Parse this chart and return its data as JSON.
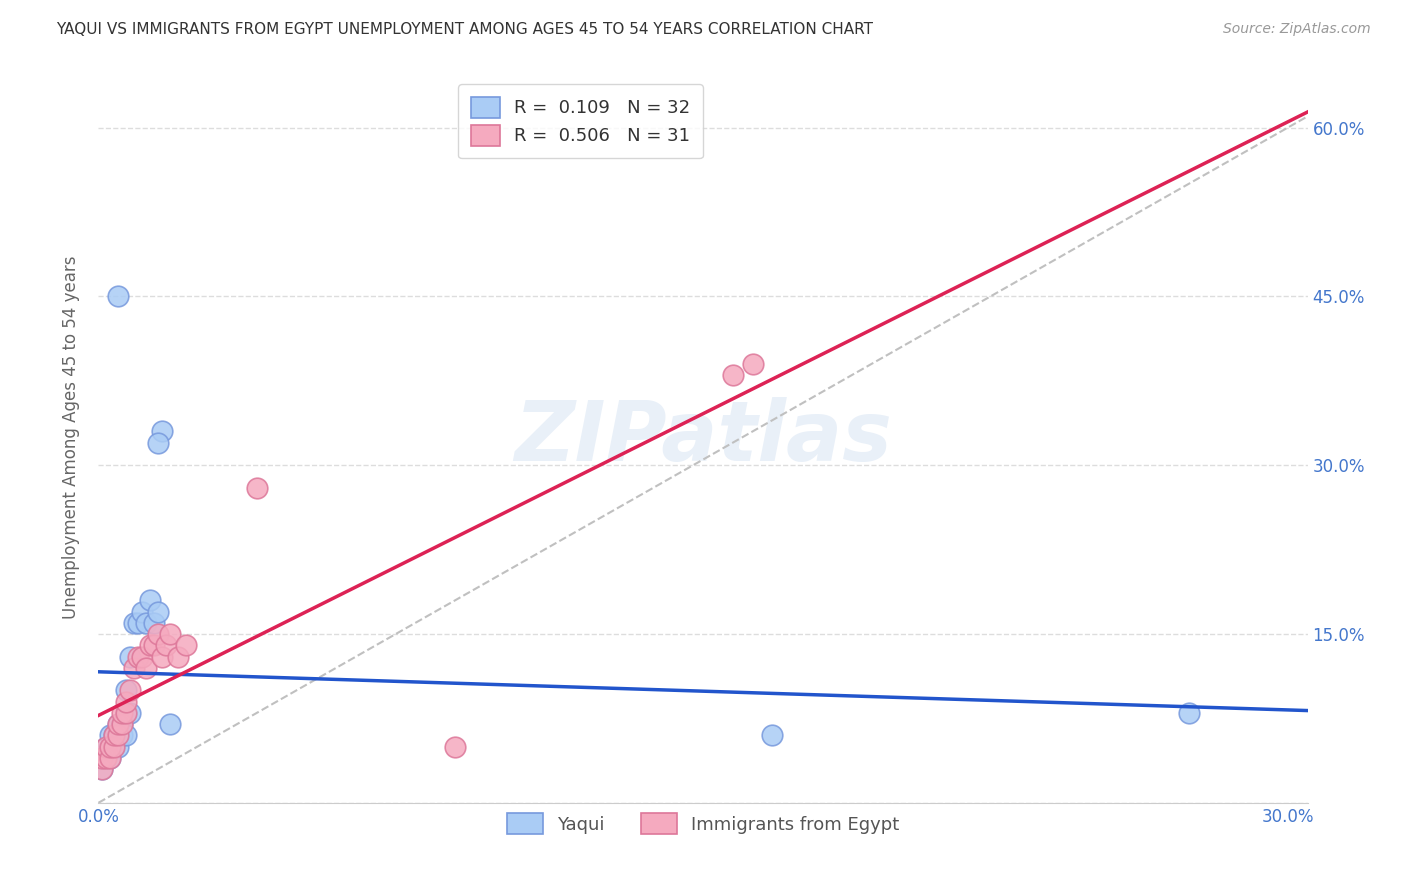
{
  "title": "YAQUI VS IMMIGRANTS FROM EGYPT UNEMPLOYMENT AMONG AGES 45 TO 54 YEARS CORRELATION CHART",
  "source": "Source: ZipAtlas.com",
  "ylabel": "Unemployment Among Ages 45 to 54 years",
  "xlim": [
    0.0,
    0.305
  ],
  "ylim": [
    0.0,
    0.65
  ],
  "xticks": [
    0.0,
    0.05,
    0.1,
    0.15,
    0.2,
    0.25,
    0.3
  ],
  "yticks": [
    0.0,
    0.15,
    0.3,
    0.45,
    0.6
  ],
  "xticklabels": [
    "0.0%",
    "",
    "",
    "",
    "",
    "",
    "30.0%"
  ],
  "yticklabels": [
    "",
    "15.0%",
    "30.0%",
    "45.0%",
    "60.0%"
  ],
  "yaqui_fill": "#aaccf5",
  "yaqui_edge": "#7799dd",
  "egypt_fill": "#f5aabf",
  "egypt_edge": "#dd7799",
  "trend_blue": "#2255cc",
  "trend_pink": "#dd2255",
  "diag_color": "#c0c0c0",
  "legend_R_yaqui": "0.109",
  "legend_N_yaqui": "32",
  "legend_R_egypt": "0.506",
  "legend_N_egypt": "31",
  "yaqui_x": [
    0.001,
    0.001,
    0.002,
    0.002,
    0.003,
    0.003,
    0.003,
    0.004,
    0.004,
    0.005,
    0.005,
    0.005,
    0.006,
    0.006,
    0.007,
    0.007,
    0.007,
    0.008,
    0.008,
    0.009,
    0.01,
    0.011,
    0.012,
    0.013,
    0.014,
    0.015,
    0.016,
    0.17,
    0.275,
    0.005,
    0.015,
    0.018
  ],
  "yaqui_y": [
    0.03,
    0.04,
    0.04,
    0.05,
    0.04,
    0.05,
    0.06,
    0.05,
    0.06,
    0.05,
    0.06,
    0.07,
    0.06,
    0.07,
    0.06,
    0.08,
    0.1,
    0.08,
    0.13,
    0.16,
    0.16,
    0.17,
    0.16,
    0.18,
    0.16,
    0.17,
    0.33,
    0.06,
    0.08,
    0.45,
    0.32,
    0.07
  ],
  "egypt_x": [
    0.001,
    0.001,
    0.002,
    0.002,
    0.003,
    0.003,
    0.004,
    0.004,
    0.005,
    0.005,
    0.006,
    0.006,
    0.007,
    0.007,
    0.008,
    0.009,
    0.01,
    0.011,
    0.012,
    0.013,
    0.014,
    0.015,
    0.016,
    0.017,
    0.018,
    0.02,
    0.022,
    0.04,
    0.09,
    0.16,
    0.165
  ],
  "egypt_y": [
    0.03,
    0.04,
    0.04,
    0.05,
    0.04,
    0.05,
    0.05,
    0.06,
    0.06,
    0.07,
    0.07,
    0.08,
    0.08,
    0.09,
    0.1,
    0.12,
    0.13,
    0.13,
    0.12,
    0.14,
    0.14,
    0.15,
    0.13,
    0.14,
    0.15,
    0.13,
    0.14,
    0.28,
    0.05,
    0.38,
    0.39
  ],
  "watermark_text": "ZIPatlas",
  "background_color": "#ffffff",
  "grid_color": "#dddddd",
  "axis_color": "#4477cc",
  "ylabel_color": "#666666",
  "title_color": "#333333",
  "source_color": "#999999"
}
